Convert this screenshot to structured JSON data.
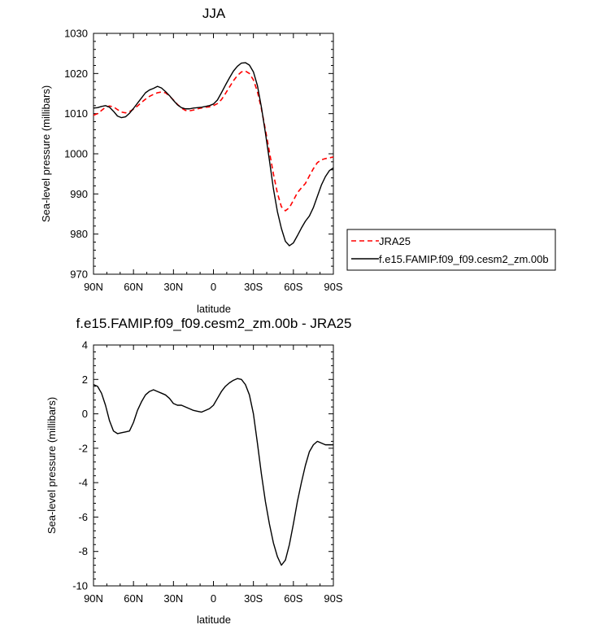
{
  "chart_data": [
    {
      "type": "line",
      "title": "JJA",
      "xlabel": "latitude",
      "ylabel": "Sea-level pressure (millibars)",
      "xlim": [
        90,
        -90
      ],
      "ylim": [
        970,
        1030
      ],
      "xtick_values": [
        90,
        60,
        30,
        0,
        -30,
        -60,
        -90
      ],
      "xtick_labels": [
        "90N",
        "60N",
        "30N",
        "0",
        "30S",
        "60S",
        "90S"
      ],
      "ytick_values": [
        970,
        980,
        990,
        1000,
        1010,
        1020,
        1030
      ],
      "legend": {
        "placement": "right"
      },
      "series": [
        {
          "name": "JRA25",
          "color": "#ff0000",
          "dash": "dashed",
          "x": [
            90,
            87,
            84,
            81,
            78,
            75,
            72,
            69,
            66,
            63,
            60,
            57,
            54,
            51,
            48,
            45,
            42,
            39,
            36,
            33,
            30,
            27,
            24,
            21,
            18,
            15,
            12,
            9,
            6,
            3,
            0,
            -3,
            -6,
            -9,
            -12,
            -15,
            -18,
            -21,
            -24,
            -27,
            -30,
            -33,
            -36,
            -39,
            -42,
            -45,
            -48,
            -51,
            -54,
            -57,
            -60,
            -63,
            -66,
            -69,
            -72,
            -75,
            -78,
            -81,
            -84,
            -87,
            -90
          ],
          "y": [
            1009.6,
            1010.0,
            1010.8,
            1011.6,
            1011.9,
            1011.7,
            1011.0,
            1010.4,
            1010.2,
            1010.5,
            1011.1,
            1011.9,
            1012.8,
            1013.6,
            1014.3,
            1014.8,
            1015.2,
            1015.4,
            1015.2,
            1014.4,
            1013.4,
            1012.3,
            1011.4,
            1010.8,
            1010.7,
            1010.9,
            1011.2,
            1011.4,
            1011.6,
            1011.7,
            1012.0,
            1012.5,
            1013.5,
            1015.0,
            1016.6,
            1018.2,
            1019.5,
            1020.4,
            1020.6,
            1020.0,
            1018.4,
            1015.5,
            1011.2,
            1006.0,
            1000.5,
            995.0,
            990.2,
            986.8,
            985.8,
            986.6,
            988.4,
            990.3,
            991.5,
            992.6,
            994.5,
            996.3,
            997.8,
            998.5,
            998.8,
            999.0,
            999.2
          ]
        },
        {
          "name": "f.e15.FAMIP.f09_f09.cesm2_zm.00b",
          "color": "#000000",
          "dash": "solid",
          "x": [
            90,
            87,
            84,
            81,
            78,
            75,
            72,
            69,
            66,
            63,
            60,
            57,
            54,
            51,
            48,
            45,
            42,
            39,
            36,
            33,
            30,
            27,
            24,
            21,
            18,
            15,
            12,
            9,
            6,
            3,
            0,
            -3,
            -6,
            -9,
            -12,
            -15,
            -18,
            -21,
            -24,
            -27,
            -30,
            -33,
            -36,
            -39,
            -42,
            -45,
            -48,
            -51,
            -54,
            -57,
            -60,
            -63,
            -66,
            -69,
            -72,
            -75,
            -78,
            -81,
            -84,
            -87,
            -90
          ],
          "y": [
            1011.4,
            1011.5,
            1011.8,
            1012.0,
            1011.6,
            1010.6,
            1009.4,
            1009.0,
            1009.2,
            1010.1,
            1011.3,
            1012.6,
            1013.9,
            1015.2,
            1015.9,
            1016.3,
            1016.8,
            1016.4,
            1015.5,
            1014.5,
            1013.3,
            1012.2,
            1011.5,
            1011.2,
            1011.2,
            1011.4,
            1011.5,
            1011.6,
            1011.8,
            1012.0,
            1012.4,
            1013.4,
            1015.2,
            1017.1,
            1018.9,
            1020.6,
            1021.8,
            1022.6,
            1022.7,
            1022.1,
            1020.4,
            1017.0,
            1011.6,
            1005.2,
            998.4,
            991.3,
            985.6,
            981.4,
            978.2,
            977.1,
            977.8,
            979.6,
            981.5,
            983.2,
            984.5,
            986.6,
            989.4,
            992.2,
            994.3,
            995.8,
            996.5
          ]
        }
      ]
    },
    {
      "type": "line",
      "title": "f.e15.FAMIP.f09_f09.cesm2_zm.00b - JRA25",
      "xlabel": "latitude",
      "ylabel": "Sea-level pressure (millibars)",
      "xlim": [
        90,
        -90
      ],
      "ylim": [
        -10,
        4
      ],
      "xtick_values": [
        90,
        60,
        30,
        0,
        -30,
        -60,
        -90
      ],
      "xtick_labels": [
        "90N",
        "60N",
        "30N",
        "0",
        "30S",
        "60S",
        "90S"
      ],
      "ytick_values": [
        -10,
        -8,
        -6,
        -4,
        -2,
        0,
        2,
        4
      ],
      "series": [
        {
          "color": "#000000",
          "dash": "solid",
          "x": [
            90,
            87,
            84,
            81,
            78,
            75,
            72,
            69,
            66,
            63,
            60,
            57,
            54,
            51,
            48,
            45,
            42,
            39,
            36,
            33,
            30,
            27,
            24,
            21,
            18,
            15,
            12,
            9,
            6,
            3,
            0,
            -3,
            -6,
            -9,
            -12,
            -15,
            -18,
            -21,
            -24,
            -27,
            -30,
            -33,
            -36,
            -39,
            -42,
            -45,
            -48,
            -51,
            -54,
            -57,
            -60,
            -63,
            -66,
            -69,
            -72,
            -75,
            -78,
            -81,
            -84,
            -87,
            -90
          ],
          "y": [
            1.7,
            1.6,
            1.2,
            0.5,
            -0.4,
            -1.0,
            -1.15,
            -1.1,
            -1.05,
            -1.0,
            -0.5,
            0.2,
            0.7,
            1.1,
            1.3,
            1.4,
            1.3,
            1.2,
            1.1,
            0.9,
            0.6,
            0.5,
            0.5,
            0.4,
            0.3,
            0.2,
            0.15,
            0.1,
            0.2,
            0.3,
            0.5,
            0.9,
            1.3,
            1.6,
            1.8,
            1.95,
            2.05,
            2.0,
            1.7,
            1.1,
            0.0,
            -1.7,
            -3.5,
            -5.1,
            -6.4,
            -7.5,
            -8.3,
            -8.8,
            -8.5,
            -7.6,
            -6.4,
            -5.1,
            -4.0,
            -3.0,
            -2.2,
            -1.8,
            -1.6,
            -1.7,
            -1.8,
            -1.8,
            -1.8
          ]
        }
      ]
    }
  ]
}
